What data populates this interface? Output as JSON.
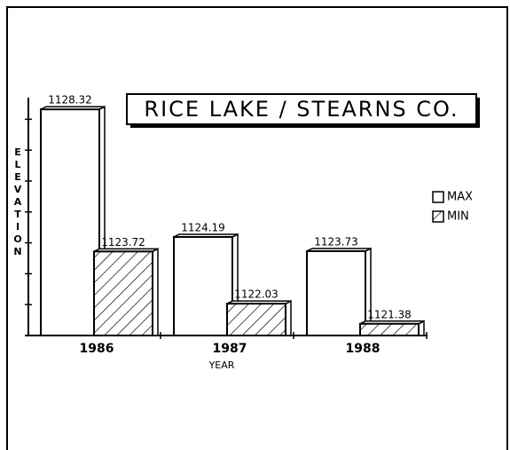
{
  "chart_data": {
    "type": "bar",
    "title": "RICE LAKE / STEARNS CO.",
    "x_label": "YEAR",
    "y_label": "ELEVATION",
    "categories": [
      "1986",
      "1987",
      "1988"
    ],
    "series": [
      {
        "name": "MAX",
        "color": "#ffffff",
        "hatch": false,
        "values": [
          1128.32,
          1124.19,
          1123.73
        ]
      },
      {
        "name": "MIN",
        "color": "#ffffff",
        "hatch": true,
        "values": [
          1123.72,
          1122.03,
          1121.38
        ]
      }
    ],
    "ylim": [
      1121,
      1128.7
    ],
    "yticks": [
      1121,
      1122,
      1123,
      1124,
      1125,
      1126,
      1127,
      1128
    ],
    "legend": "right",
    "grid": false
  }
}
